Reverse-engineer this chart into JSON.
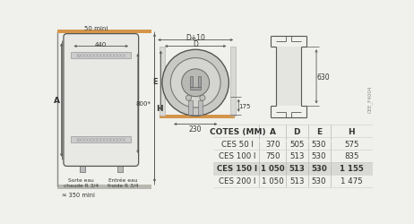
{
  "bg_color": "#f0f0ec",
  "text_dark": "#333333",
  "orange_bar": "#d4954a",
  "floor_color": "#b8b8b0",
  "tank_face": "#e8e8e4",
  "tank_edge": "#555555",
  "table_header": "COTES (MM)",
  "col_headers": [
    "A",
    "D",
    "E",
    "H"
  ],
  "rows": [
    [
      "CES 50 l",
      "370",
      "505",
      "530",
      "575"
    ],
    [
      "CES 100 l",
      "750",
      "513",
      "530",
      "835"
    ],
    [
      "CES 150 l",
      "1 050",
      "513",
      "530",
      "1 155"
    ],
    [
      "CES 200 l",
      "1 050",
      "513",
      "530",
      "1 475"
    ]
  ],
  "highlighted_row": 2,
  "ref_text": "CEE_F4004",
  "dim_440": "440",
  "dim_800": "800*",
  "dim_H": "H",
  "dim_A": "A",
  "dim_50mini": "50 mini",
  "dim_350mini": "≈ 350 mini",
  "label_sorte_eau": "Sorte eau\nchaude R 3/4",
  "label_entree_eau": "Entrée eau\nfroide R 3/4",
  "dim_D10": "D+10",
  "dim_D": "D",
  "dim_E": "E",
  "dim_175": "175",
  "dim_230": "230",
  "dim_630": "630"
}
